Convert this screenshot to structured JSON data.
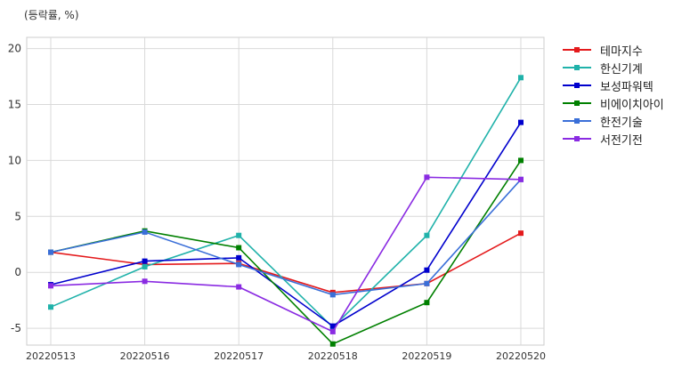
{
  "unit_label": "(등락률, %)",
  "chart_data": {
    "type": "line",
    "title": "",
    "xlabel": "",
    "ylabel": "",
    "categories": [
      "20220513",
      "20220516",
      "20220517",
      "20220518",
      "20220519",
      "20220520"
    ],
    "ylim": [
      -6.5,
      21
    ],
    "yticks": [
      -5,
      0,
      5,
      10,
      15,
      20
    ],
    "grid": true,
    "legend_position": "outside-top-right",
    "series": [
      {
        "name": "테마지수",
        "color": "#e41a1c",
        "values": [
          1.8,
          0.7,
          0.8,
          -1.8,
          -1.0,
          3.5
        ]
      },
      {
        "name": "한신기계",
        "color": "#20b2aa",
        "values": [
          -3.1,
          0.5,
          3.3,
          -4.9,
          3.3,
          17.4
        ]
      },
      {
        "name": "보성파워텍",
        "color": "#0000cd",
        "values": [
          -1.1,
          1.0,
          1.3,
          -4.8,
          0.2,
          13.4
        ]
      },
      {
        "name": "비에이치아이",
        "color": "#008000",
        "values": [
          1.8,
          3.7,
          2.2,
          -6.4,
          -2.7,
          10.0
        ]
      },
      {
        "name": "한전기술",
        "color": "#3a6fd8",
        "values": [
          1.8,
          3.6,
          0.7,
          -2.0,
          -1.0,
          8.3
        ]
      },
      {
        "name": "서전기전",
        "color": "#8a2be2",
        "values": [
          -1.2,
          -0.8,
          -1.3,
          -5.3,
          8.5,
          8.3
        ]
      }
    ]
  }
}
